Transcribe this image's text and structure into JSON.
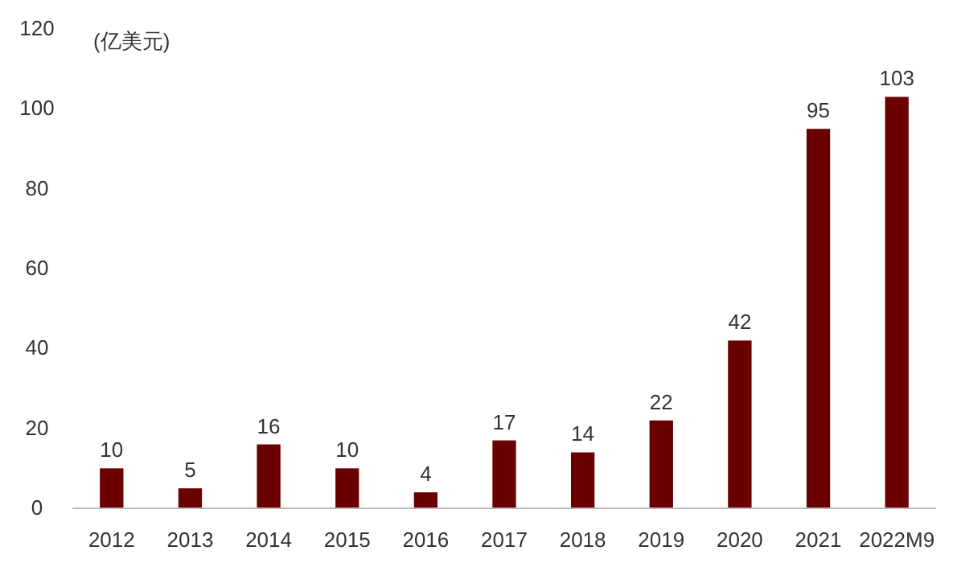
{
  "chart_data": {
    "type": "bar",
    "ylabel": "(亿美元)",
    "categories": [
      "2012",
      "2013",
      "2014",
      "2015",
      "2016",
      "2017",
      "2018",
      "2019",
      "2020",
      "2021",
      "2022M9"
    ],
    "values": [
      10,
      5,
      16,
      10,
      4,
      17,
      14,
      22,
      42,
      95,
      103
    ],
    "color": "#6b0000",
    "ylim": [
      0,
      120
    ],
    "yticks": [
      0,
      20,
      40,
      60,
      80,
      100,
      120
    ],
    "data_labels": true
  }
}
